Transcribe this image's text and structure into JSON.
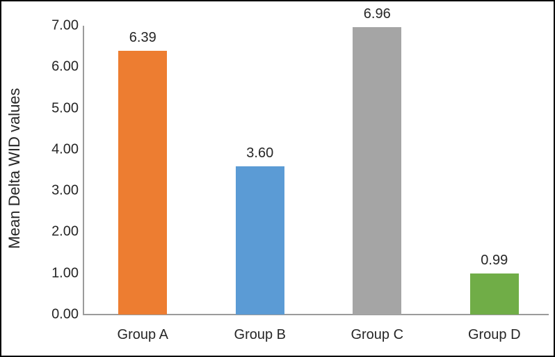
{
  "chart_data": {
    "type": "bar",
    "title": "",
    "xlabel": "",
    "ylabel": "Mean Delta WID values",
    "categories": [
      "Group A",
      "Group B",
      "Group C",
      "Group D"
    ],
    "values": [
      6.39,
      3.6,
      6.96,
      0.99
    ],
    "value_labels": [
      "6.39",
      "3.60",
      "6.96",
      "0.99"
    ],
    "bar_colors": [
      "#ED7D31",
      "#5B9BD5",
      "#A5A5A5",
      "#70AD47"
    ],
    "ylim": [
      0,
      7
    ],
    "ytick_step": 1,
    "ytick_labels": [
      "0.00",
      "1.00",
      "2.00",
      "3.00",
      "4.00",
      "5.00",
      "6.00",
      "7.00"
    ],
    "grid": false,
    "legend": "none",
    "axis_color": "#9B9B9B",
    "text_color": "#262626",
    "frame_color": "#000000",
    "background": "#FFFFFF"
  }
}
